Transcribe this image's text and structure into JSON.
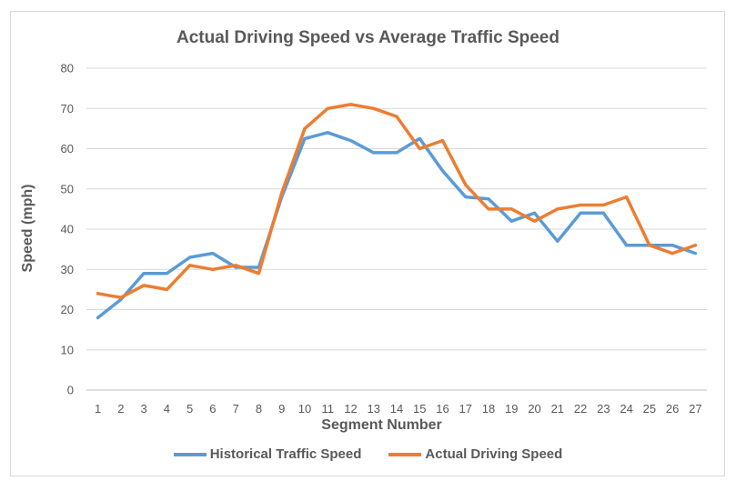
{
  "chart_data": {
    "type": "line",
    "title": "Actual Driving Speed vs Average Traffic Speed",
    "xlabel": "Segment Number",
    "ylabel": "Speed (mph)",
    "ylim": [
      0,
      80
    ],
    "yticks": [
      0,
      10,
      20,
      30,
      40,
      50,
      60,
      70,
      80
    ],
    "grid": true,
    "legend_position": "bottom",
    "categories": [
      "1",
      "2",
      "3",
      "4",
      "5",
      "6",
      "7",
      "8",
      "9",
      "10",
      "11",
      "12",
      "13",
      "14",
      "15",
      "16",
      "17",
      "18",
      "19",
      "20",
      "21",
      "22",
      "23",
      "24",
      "25",
      "26",
      "27"
    ],
    "series": [
      {
        "name": "Historical Traffic Speed",
        "color": "#5b9bd5",
        "values": [
          18,
          22.5,
          29,
          29,
          33,
          34,
          30.5,
          30.5,
          48,
          62.5,
          64,
          62,
          59,
          59,
          62.5,
          54.5,
          48,
          47.5,
          42,
          44,
          37,
          44,
          44,
          36,
          36,
          36,
          34
        ]
      },
      {
        "name": "Actual Driving Speed",
        "color": "#ed7d31",
        "values": [
          24,
          23,
          26,
          25,
          31,
          30,
          31,
          29,
          49,
          65,
          70,
          71,
          70,
          68,
          60,
          62,
          51,
          45,
          45,
          42,
          45,
          46,
          46,
          48,
          36,
          34,
          36
        ]
      }
    ]
  }
}
